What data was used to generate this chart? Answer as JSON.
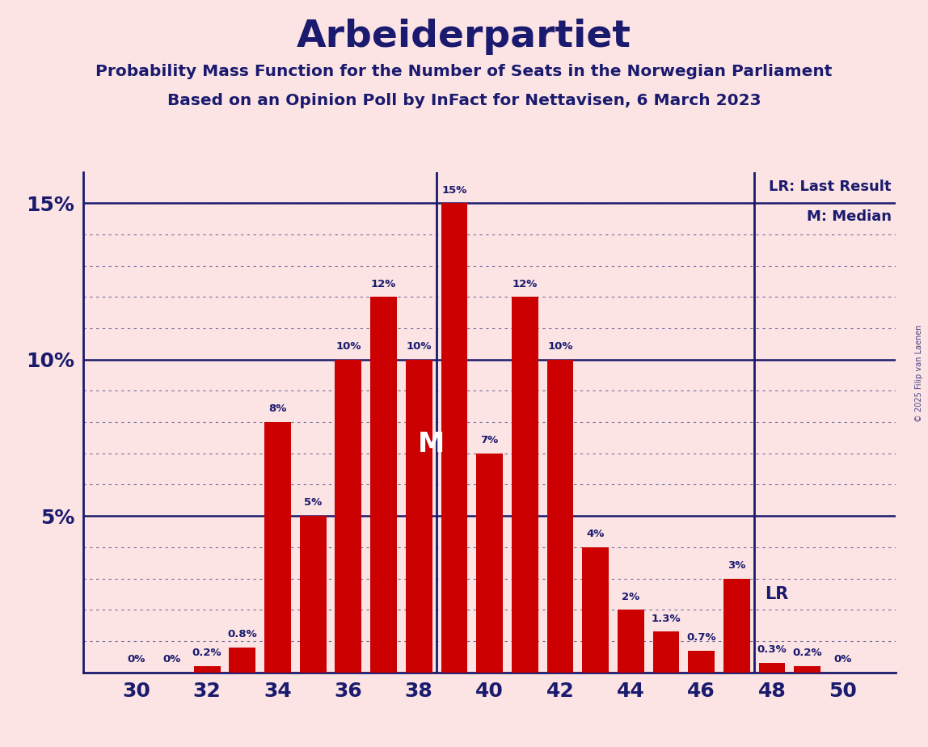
{
  "title": "Arbeiderpartiet",
  "subtitle1": "Probability Mass Function for the Number of Seats in the Norwegian Parliament",
  "subtitle2": "Based on an Opinion Poll by InFact for Nettavisen, 6 March 2023",
  "copyright": "© 2025 Filip van Laenen",
  "seats": [
    30,
    31,
    32,
    33,
    34,
    35,
    36,
    37,
    38,
    39,
    40,
    41,
    42,
    43,
    44,
    45,
    46,
    47,
    48,
    49,
    50
  ],
  "probabilities": [
    0.0,
    0.0,
    0.2,
    0.8,
    8.0,
    5.0,
    10.0,
    12.0,
    10.0,
    15.0,
    7.0,
    12.0,
    10.0,
    4.0,
    2.0,
    1.3,
    0.7,
    3.0,
    0.3,
    0.2,
    0.0
  ],
  "bar_labels": [
    "0%",
    "0%",
    "0.2%",
    "0.8%",
    "8%",
    "5%",
    "10%",
    "12%",
    "10%",
    "15%",
    "7%",
    "12%",
    "10%",
    "4%",
    "2%",
    "1.3%",
    "0.7%",
    "3%",
    "0.3%",
    "0.2%",
    "0%"
  ],
  "bar_color": "#cc0000",
  "background_color": "#fce4e4",
  "text_color": "#1a1a6e",
  "title_color": "#1a1a6e",
  "median_seat": 38.5,
  "last_result_seat": 47.5,
  "legend_lr": "LR: Last Result",
  "legend_m": "M: Median",
  "ylim": [
    0,
    16.0
  ],
  "grid_minor_step": 1.0,
  "grid_major_vals": [
    5,
    10,
    15
  ],
  "bar_width": 0.75
}
